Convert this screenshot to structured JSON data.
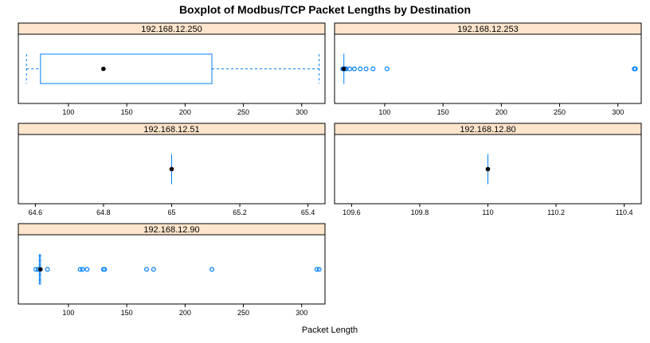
{
  "chart_data": {
    "type": "boxplot",
    "title": "Boxplot of Modbus/TCP Packet Lengths by Destination",
    "xlabel": "Packet Length",
    "ylabel": "",
    "colors": {
      "box": "#0080ff",
      "outlier": "#0080ff",
      "median": "#000000",
      "strip": "#ffe5cc"
    },
    "panels": [
      {
        "name": "192.168.12.250",
        "xlim": [
          57,
          320
        ],
        "ticks": [
          100,
          150,
          200,
          250,
          300
        ],
        "stats": {
          "lower_whisker": 64,
          "q1": 76,
          "median": 130,
          "q3": 223,
          "upper_whisker": 315
        },
        "outliers": []
      },
      {
        "name": "192.168.12.253",
        "xlim": [
          57,
          320
        ],
        "ticks": [
          100,
          150,
          200,
          250,
          300
        ],
        "stats": {
          "lower_whisker": 65,
          "q1": 65,
          "median": 65,
          "q3": 65,
          "upper_whisker": 65
        },
        "outliers": [
          64,
          64.5,
          66,
          67,
          70,
          74,
          79,
          84,
          90,
          102,
          314,
          315
        ]
      },
      {
        "name": "192.168.12.51",
        "xlim": [
          64.55,
          65.45
        ],
        "ticks": [
          64.6,
          64.8,
          65.0,
          65.2,
          65.4
        ],
        "stats": {
          "lower_whisker": 65,
          "q1": 65,
          "median": 65,
          "q3": 65,
          "upper_whisker": 65
        },
        "outliers": []
      },
      {
        "name": "192.168.12.80",
        "xlim": [
          109.55,
          110.45
        ],
        "ticks": [
          109.6,
          109.8,
          110.0,
          110.2,
          110.4
        ],
        "stats": {
          "lower_whisker": 110,
          "q1": 110,
          "median": 110,
          "q3": 110,
          "upper_whisker": 110
        },
        "outliers": []
      },
      {
        "name": "192.168.12.90",
        "xlim": [
          57,
          320
        ],
        "ticks": [
          100,
          150,
          200,
          250,
          300
        ],
        "stats": {
          "lower_whisker": 75,
          "q1": 75,
          "median": 76,
          "q3": 76,
          "upper_whisker": 76
        },
        "outliers": [
          72,
          74,
          82,
          110,
          112,
          116,
          130,
          131,
          167,
          173,
          223,
          313,
          315
        ]
      }
    ]
  }
}
